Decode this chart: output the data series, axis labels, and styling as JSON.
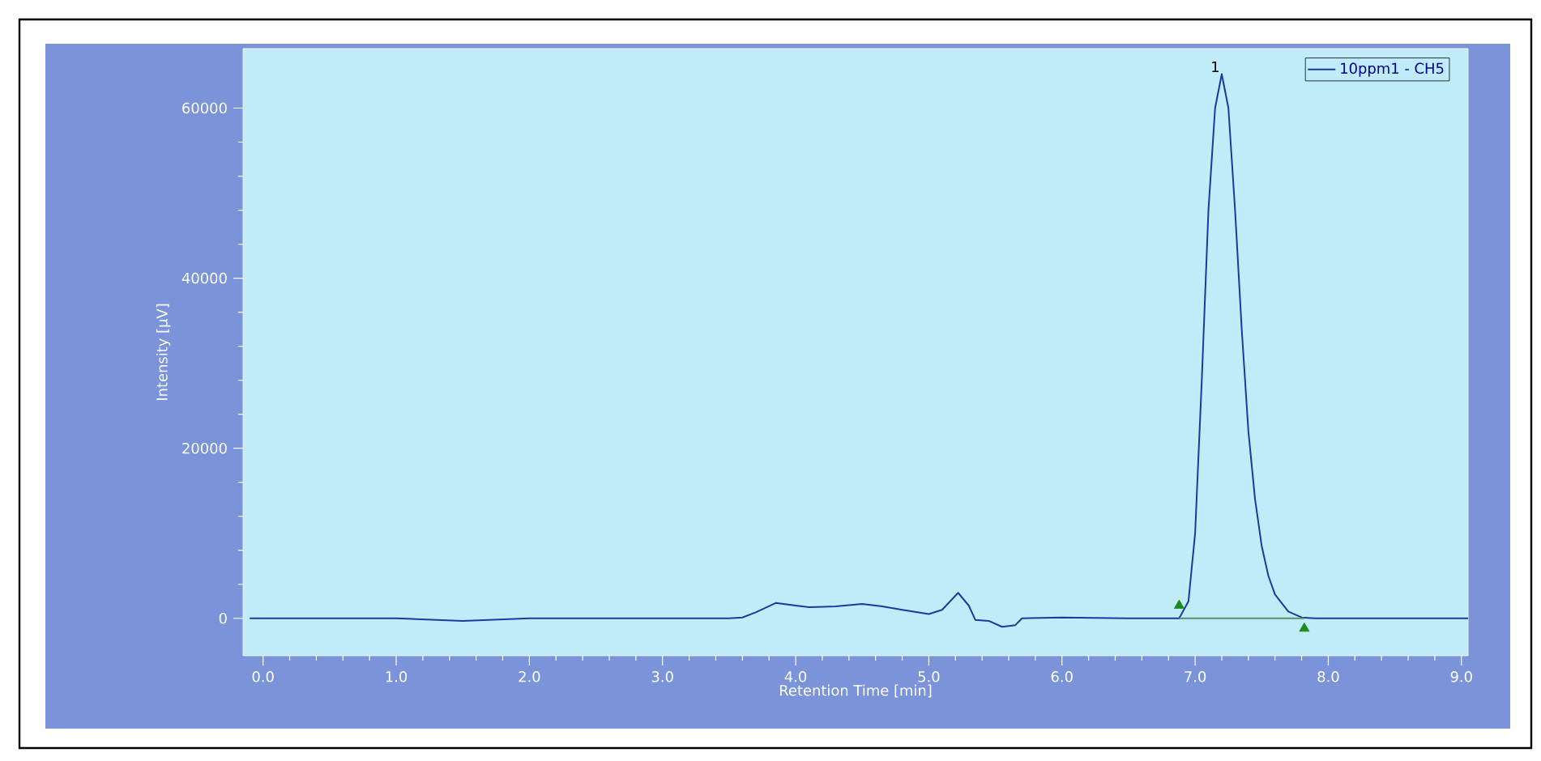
{
  "chart_data": {
    "type": "line",
    "xlabel": "Retention Time [min]",
    "ylabel": "Intensity [µV]",
    "xlim": [
      -0.15,
      9.05
    ],
    "ylim": [
      -4400,
      67000
    ],
    "xticks": [
      {
        "value": 0,
        "label": "0.0"
      },
      {
        "value": 1,
        "label": "1.0"
      },
      {
        "value": 2,
        "label": "2.0"
      },
      {
        "value": 3,
        "label": "3.0"
      },
      {
        "value": 4,
        "label": "4.0"
      },
      {
        "value": 5,
        "label": "5.0"
      },
      {
        "value": 6,
        "label": "6.0"
      },
      {
        "value": 7,
        "label": "7.0"
      },
      {
        "value": 8,
        "label": "8.0"
      },
      {
        "value": 9,
        "label": "9.0"
      }
    ],
    "yticks": [
      0,
      20000,
      40000,
      60000
    ],
    "legend": "top right",
    "grid": false,
    "annotations": [
      {
        "text": "1",
        "x": 7.2,
        "y": 64000
      }
    ],
    "series": [
      {
        "name": "10ppm1 - CH5",
        "color": "#1a3a9c",
        "x": [
          -0.1,
          0.5,
          1.0,
          1.5,
          2.0,
          2.5,
          3.0,
          3.5,
          3.6,
          3.7,
          3.85,
          4.0,
          4.1,
          4.3,
          4.5,
          4.65,
          4.8,
          5.0,
          5.1,
          5.22,
          5.3,
          5.35,
          5.45,
          5.55,
          5.65,
          5.7,
          6.0,
          6.5,
          6.88,
          6.95,
          7.0,
          7.05,
          7.1,
          7.15,
          7.2,
          7.25,
          7.3,
          7.35,
          7.4,
          7.45,
          7.5,
          7.55,
          7.6,
          7.7,
          7.8,
          7.9,
          8.5,
          9.05
        ],
        "values": [
          0,
          0,
          0,
          -300,
          0,
          0,
          0,
          0,
          100,
          700,
          1800,
          1500,
          1300,
          1400,
          1700,
          1400,
          1000,
          500,
          1000,
          3000,
          1500,
          -200,
          -300,
          -1000,
          -800,
          0,
          100,
          0,
          0,
          2000,
          10000,
          28000,
          48000,
          60000,
          64000,
          60000,
          48000,
          34000,
          22000,
          14000,
          8500,
          5000,
          2800,
          800,
          100,
          0,
          0,
          0
        ]
      },
      {
        "type": "line",
        "color": "#5f8a6e",
        "x": [
          6.88,
          7.82
        ],
        "values": [
          0,
          0
        ]
      },
      {
        "type": "scatter",
        "marker": "triangle",
        "color": "#1e8a1e",
        "x": [
          6.88,
          7.82
        ],
        "values": [
          1500,
          -1200
        ]
      }
    ]
  }
}
